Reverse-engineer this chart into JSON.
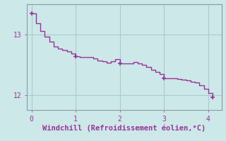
{
  "x": [
    0.0,
    0.1,
    0.2,
    0.3,
    0.4,
    0.5,
    0.6,
    0.7,
    0.8,
    0.9,
    1.0,
    1.1,
    1.2,
    1.3,
    1.4,
    1.5,
    1.6,
    1.7,
    1.8,
    1.9,
    2.0,
    2.1,
    2.2,
    2.3,
    2.4,
    2.5,
    2.6,
    2.7,
    2.8,
    2.9,
    3.0,
    3.1,
    3.2,
    3.3,
    3.4,
    3.5,
    3.6,
    3.7,
    3.8,
    3.9,
    4.0,
    4.1
  ],
  "y": [
    13.35,
    13.18,
    13.06,
    12.96,
    12.88,
    12.8,
    12.76,
    12.74,
    12.72,
    12.68,
    12.64,
    12.63,
    12.62,
    12.62,
    12.6,
    12.57,
    12.55,
    12.53,
    12.56,
    12.59,
    12.52,
    12.52,
    12.52,
    12.54,
    12.52,
    12.5,
    12.46,
    12.42,
    12.38,
    12.34,
    12.28,
    12.27,
    12.27,
    12.26,
    12.25,
    12.24,
    12.22,
    12.2,
    12.16,
    12.1,
    12.03,
    11.96
  ],
  "marker_x": [
    0.0,
    1.0,
    2.0,
    3.0,
    4.1
  ],
  "marker_y": [
    13.35,
    12.64,
    12.52,
    12.28,
    11.96
  ],
  "line_color": "#993399",
  "marker_color": "#993399",
  "bg_color": "#cce8e8",
  "grid_color": "#aacccc",
  "spine_color": "#8899aa",
  "text_color": "#993399",
  "xlabel": "Windchill (Refroidissement éolien,°C)",
  "xlim": [
    -0.1,
    4.3
  ],
  "ylim": [
    11.75,
    13.5
  ],
  "xticks": [
    0,
    1,
    2,
    3,
    4
  ],
  "yticks": [
    12,
    13
  ],
  "xlabel_fontsize": 7.5,
  "tick_fontsize": 7
}
